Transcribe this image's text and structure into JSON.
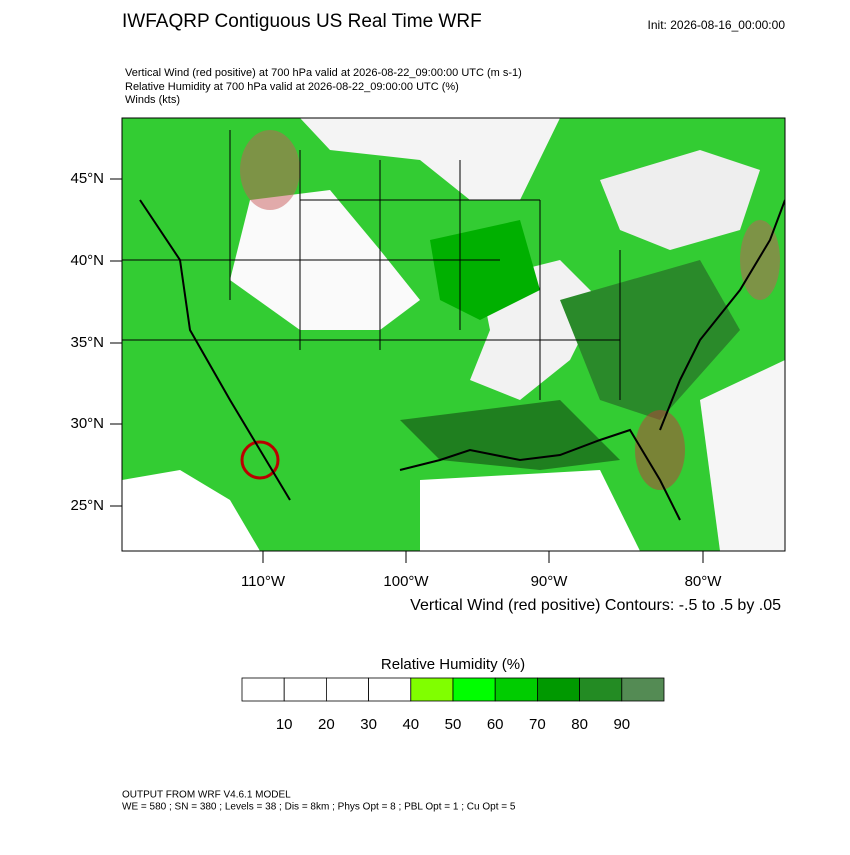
{
  "header": {
    "title": "IWFAQRP Contiguous US Real Time WRF",
    "init": "Init: 2026-08-16_00:00:00",
    "fields": [
      "Vertical Wind (red positive) at 700 hPa valid at 2026-08-22_09:00:00 UTC   (m s-1)",
      "Relative Humidity at 700 hPa valid at 2026-08-22_09:00:00 UTC   (%)",
      "Winds   (kts)"
    ]
  },
  "map": {
    "lat_labels": [
      "45°N",
      "40°N",
      "35°N",
      "30°N",
      "25°N"
    ],
    "lon_labels": [
      "110°W",
      "100°W",
      "90°W",
      "80°W"
    ],
    "contour_note": "Vertical Wind (red positive) Contours: -.5 to .5 by .05"
  },
  "colorbar": {
    "title": "Relative Humidity  (%)",
    "colors": [
      "#ffffff",
      "#ffffff",
      "#ffffff",
      "#ffffff",
      "#80ff00",
      "#00ff00",
      "#00cc00",
      "#009900",
      "#238b23",
      "#548b54"
    ],
    "labels": [
      "10",
      "20",
      "30",
      "40",
      "50",
      "60",
      "70",
      "80",
      "90"
    ]
  },
  "footer": [
    "OUTPUT FROM WRF V4.6.1 MODEL",
    "WE = 580 ; SN = 380 ; Levels = 38 ; Dis = 8km ; Phys Opt = 8 ; PBL Opt = 1 ; Cu Opt = 5"
  ]
}
